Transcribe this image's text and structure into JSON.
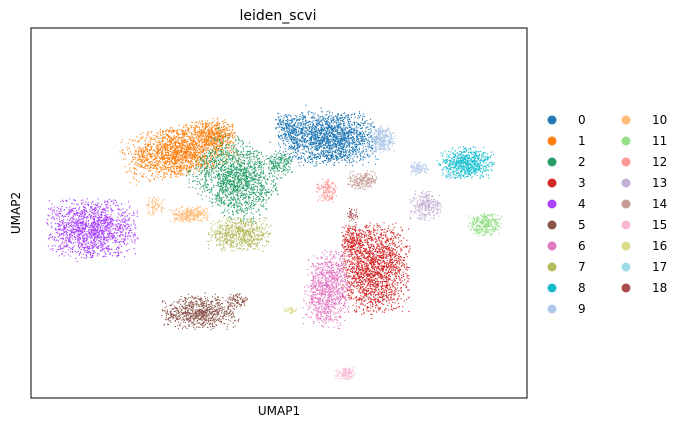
{
  "chart_data": {
    "type": "scatter",
    "title": "leiden_scvi",
    "xlabel": "UMAP1",
    "ylabel": "UMAP2",
    "xticks": [],
    "yticks": [],
    "grid": false,
    "legend_placement": "right, outside plot, two columns",
    "series": [
      {
        "name": "0",
        "color": "#1f77b4"
      },
      {
        "name": "1",
        "color": "#ff7f0e"
      },
      {
        "name": "2",
        "color": "#279e68"
      },
      {
        "name": "3",
        "color": "#d62728"
      },
      {
        "name": "4",
        "color": "#aa40fc"
      },
      {
        "name": "5",
        "color": "#8c564b"
      },
      {
        "name": "6",
        "color": "#e377c2"
      },
      {
        "name": "7",
        "color": "#b5bd61"
      },
      {
        "name": "8",
        "color": "#17becf"
      },
      {
        "name": "9",
        "color": "#aec7e8"
      },
      {
        "name": "10",
        "color": "#ffbb78"
      },
      {
        "name": "11",
        "color": "#98df8a"
      },
      {
        "name": "12",
        "color": "#ff9896"
      },
      {
        "name": "13",
        "color": "#c5b0d5"
      },
      {
        "name": "14",
        "color": "#c49c94"
      },
      {
        "name": "15",
        "color": "#f7b6d2"
      },
      {
        "name": "16",
        "color": "#dbdb8d"
      },
      {
        "name": "17",
        "color": "#9edae5"
      },
      {
        "name": "18",
        "color": "#ad494a"
      }
    ]
  }
}
